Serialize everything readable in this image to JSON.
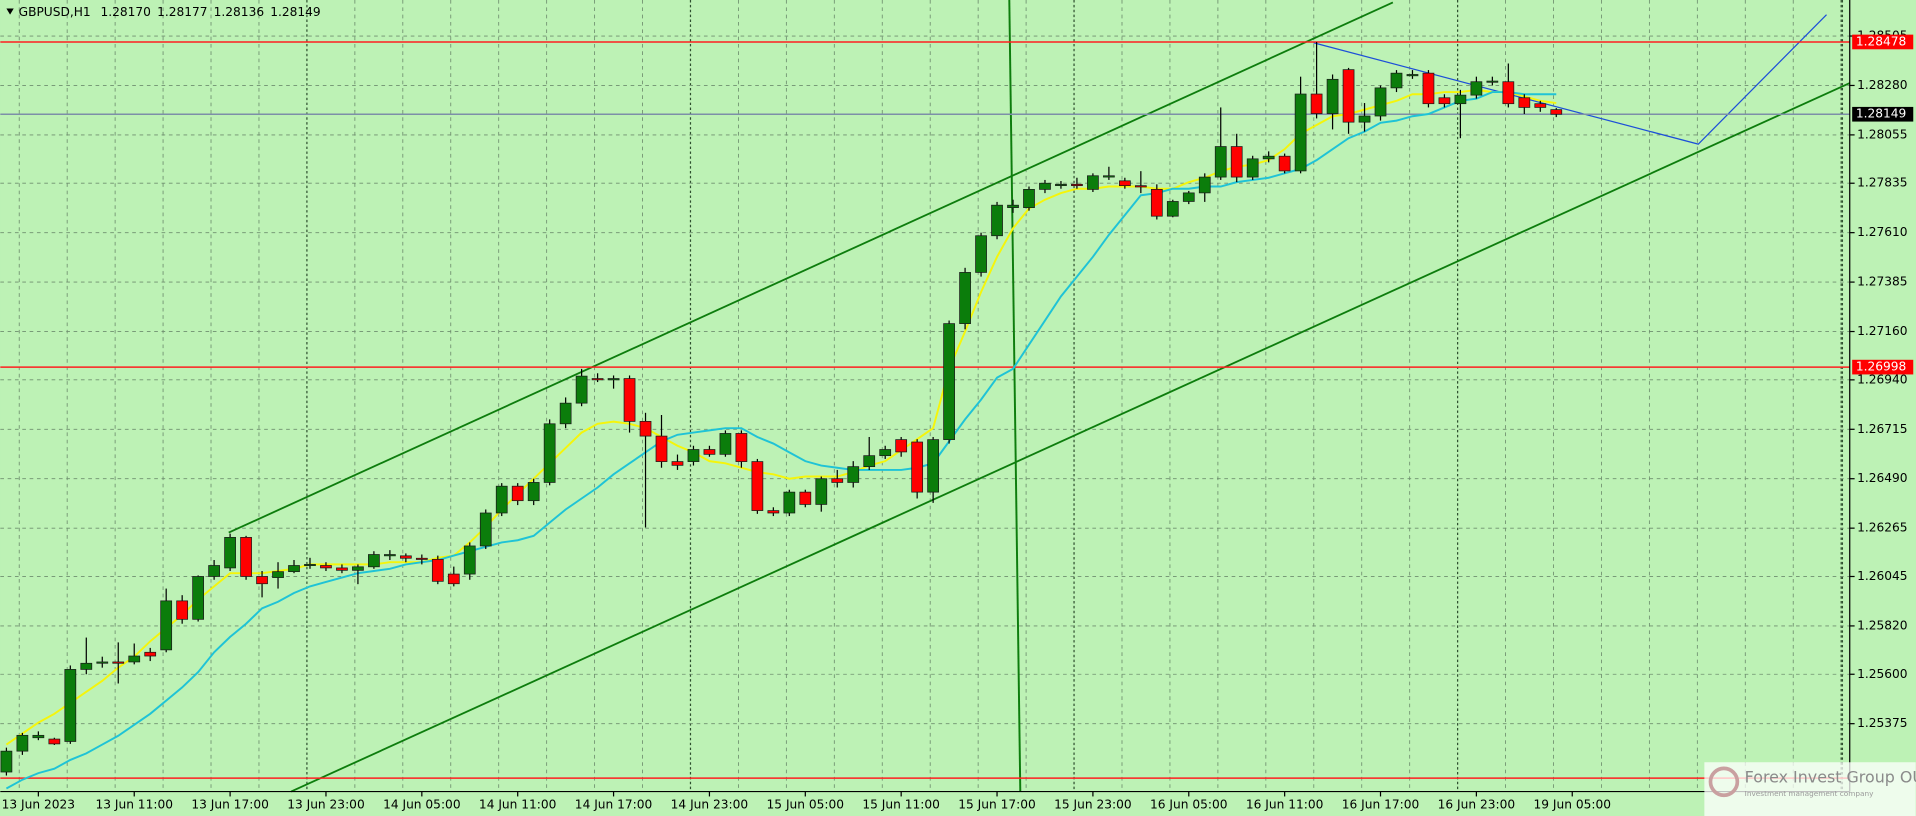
{
  "chart_data": {
    "type": "candlestick",
    "title": "GBPUSD,H1",
    "header_values": [
      "1.28170",
      "1.28177",
      "1.28136",
      "1.28149"
    ],
    "categories": [
      null,
      null,
      "13 Jun 2023",
      null,
      null,
      null,
      null,
      null,
      "13 Jun 11:00",
      null,
      null,
      null,
      null,
      null,
      "13 Jun 17:00",
      null,
      null,
      null,
      null,
      null,
      "13 Jun 23:00",
      null,
      null,
      null,
      null,
      null,
      "14 Jun 05:00",
      null,
      null,
      null,
      null,
      null,
      "14 Jun 11:00",
      null,
      null,
      null,
      null,
      null,
      "14 Jun 17:00",
      null,
      null,
      null,
      null,
      null,
      "14 Jun 23:00",
      null,
      null,
      null,
      null,
      null,
      "15 Jun 05:00",
      null,
      null,
      null,
      null,
      null,
      "15 Jun 11:00",
      null,
      null,
      null,
      null,
      null,
      "15 Jun 17:00",
      null,
      null,
      null,
      null,
      null,
      "15 Jun 23:00",
      null,
      null,
      null,
      null,
      null,
      "16 Jun 05:00",
      null,
      null,
      null,
      null,
      null,
      "16 Jun 11:00",
      null,
      null,
      null,
      null,
      null,
      "16 Jun 17:00",
      null,
      null,
      null,
      null,
      null,
      "16 Jun 23:00",
      null,
      null,
      null,
      null,
      null,
      "19 Jun 05:00"
    ],
    "open": [
      1.25155,
      1.2525,
      1.25311,
      1.25305,
      1.25294,
      1.25622,
      1.2565,
      1.25656,
      1.25656,
      1.257,
      1.25711,
      1.25934,
      1.2585,
      1.26045,
      1.26084,
      1.26223,
      1.26045,
      1.2604,
      1.26067,
      1.26095,
      1.26095,
      1.26084,
      1.26073,
      1.26089,
      1.26139,
      1.26139,
      1.26128,
      1.26123,
      1.26056,
      1.26056,
      1.26184,
      1.26334,
      1.26456,
      1.2639,
      1.26473,
      1.2674,
      1.26834,
      1.26946,
      1.2694,
      1.26946,
      1.26751,
      1.26684,
      1.26568,
      1.26568,
      1.26623,
      1.26601,
      1.26696,
      1.26568,
      1.26345,
      1.26334,
      1.26429,
      1.26373,
      1.2649,
      1.26473,
      1.26545,
      1.26595,
      1.26668,
      1.26657,
      1.26429,
      1.26668,
      1.27196,
      1.27429,
      1.27596,
      1.27724,
      1.27724,
      1.27807,
      1.27824,
      1.2783,
      1.27807,
      1.27863,
      1.27846,
      1.27824,
      1.27807,
      1.27685,
      1.27752,
      1.27791,
      1.27863,
      1.28002,
      1.27863,
      1.27946,
      1.27958,
      1.27891,
      1.28241,
      1.28152,
      1.28352,
      1.28113,
      1.28141,
      1.28269,
      1.28324,
      1.28336,
      1.28224,
      1.28197,
      1.28236,
      1.28297,
      1.28297,
      1.28224,
      1.28197,
      1.2817,
      null
    ],
    "high": [
      1.25266,
      1.25333,
      1.2534,
      1.25311,
      1.2564,
      1.25767,
      1.2568,
      1.25745,
      1.2574,
      1.2572,
      1.2599,
      1.2596,
      1.2605,
      1.2612,
      1.2624,
      1.2623,
      1.2607,
      1.2611,
      1.2612,
      1.2613,
      1.2611,
      1.261,
      1.261,
      1.2616,
      1.26165,
      1.2615,
      1.26145,
      1.2614,
      1.2609,
      1.262,
      1.2635,
      1.2647,
      1.2647,
      1.2649,
      1.2676,
      1.2686,
      1.2699,
      1.2697,
      1.2696,
      1.2696,
      1.2679,
      1.2678,
      1.266,
      1.2664,
      1.2664,
      1.2671,
      1.2671,
      1.2658,
      1.2636,
      1.2644,
      1.2644,
      1.265,
      1.2653,
      1.2657,
      1.2668,
      1.2664,
      1.2668,
      1.2667,
      1.2668,
      1.2721,
      1.2745,
      1.2761,
      1.2775,
      1.2776,
      1.2782,
      1.2785,
      1.27845,
      1.2786,
      1.2788,
      1.2791,
      1.2786,
      1.2789,
      1.2783,
      1.2776,
      1.278,
      1.2788,
      1.2818,
      1.2806,
      1.2796,
      1.2798,
      1.2797,
      1.2832,
      1.28478,
      1.2833,
      1.2836,
      1.282,
      1.2828,
      1.2835,
      1.2835,
      1.2835,
      1.2824,
      1.2826,
      1.2832,
      1.2832,
      1.2838,
      1.2824,
      1.2821,
      1.28177,
      null
    ],
    "low": [
      1.25139,
      1.25233,
      1.253,
      1.25278,
      1.25283,
      1.256,
      1.2563,
      1.25558,
      1.25645,
      1.2566,
      1.257,
      1.2583,
      1.2584,
      1.2603,
      1.2607,
      1.2603,
      1.2595,
      1.2599,
      1.2606,
      1.2608,
      1.2607,
      1.2606,
      1.2601,
      1.2608,
      1.2612,
      1.2611,
      1.261,
      1.2601,
      1.26,
      1.2603,
      1.2617,
      1.2632,
      1.2637,
      1.2637,
      1.2646,
      1.2672,
      1.2682,
      1.2693,
      1.269,
      1.267,
      1.26268,
      1.2654,
      1.2653,
      1.2655,
      1.2659,
      1.2659,
      1.2654,
      1.2633,
      1.2632,
      1.2632,
      1.2636,
      1.2634,
      1.2645,
      1.2645,
      1.2653,
      1.2658,
      1.2659,
      1.264,
      1.2638,
      1.2665,
      1.2717,
      1.2741,
      1.2758,
      1.277,
      1.2771,
      1.2779,
      1.2781,
      1.2781,
      1.27795,
      1.2785,
      1.2781,
      1.2779,
      1.2767,
      1.2768,
      1.2774,
      1.2775,
      1.2785,
      1.2784,
      1.2785,
      1.2793,
      1.2788,
      1.2788,
      1.2813,
      1.2808,
      1.2806,
      1.2807,
      1.2812,
      1.2825,
      1.2831,
      1.2818,
      1.2818,
      1.2804,
      1.2822,
      1.2828,
      1.2818,
      1.2815,
      1.2816,
      1.28136,
      null
    ],
    "close": [
      1.2525,
      1.25322,
      1.25322,
      1.25283,
      1.25622,
      1.2565,
      1.25656,
      1.2565,
      1.25683,
      1.25683,
      1.25934,
      1.2585,
      1.26045,
      1.26095,
      1.26223,
      1.26045,
      1.26012,
      1.26067,
      1.26095,
      1.261,
      1.26084,
      1.26073,
      1.26089,
      1.26145,
      1.26145,
      1.26128,
      1.26123,
      1.26023,
      1.26012,
      1.26184,
      1.26334,
      1.26456,
      1.2639,
      1.26473,
      1.2674,
      1.26834,
      1.26957,
      1.2694,
      1.26946,
      1.26751,
      1.26684,
      1.26568,
      1.26551,
      1.26623,
      1.26601,
      1.26696,
      1.26568,
      1.26345,
      1.26334,
      1.26429,
      1.26373,
      1.2649,
      1.26473,
      1.26545,
      1.26595,
      1.26623,
      1.26612,
      1.26429,
      1.26668,
      1.27196,
      1.27429,
      1.27596,
      1.27735,
      1.27735,
      1.27807,
      1.27835,
      1.2783,
      1.27824,
      1.27869,
      1.27869,
      1.27824,
      1.27818,
      1.27685,
      1.27752,
      1.27791,
      1.27863,
      1.28002,
      1.27863,
      1.27946,
      1.27958,
      1.27891,
      1.28241,
      1.28152,
      1.28308,
      1.28113,
      1.28141,
      1.28269,
      1.28336,
      1.2833,
      1.28197,
      1.28197,
      1.28236,
      1.28297,
      1.283,
      1.28197,
      1.2818,
      1.2818,
      1.28149,
      null
    ],
    "up_color": "#0b7d0b",
    "down_color": "#ff0000",
    "series": [
      {
        "color": "#f5f50a",
        "values": [
          1.2528,
          1.2533,
          1.2538,
          1.2542,
          1.2547,
          1.2552,
          1.2557,
          1.2563,
          1.2568,
          1.2575,
          1.2581,
          1.2587,
          1.2594,
          1.26,
          1.2606,
          1.2606,
          1.2606,
          1.2607,
          1.2608,
          1.261,
          1.261,
          1.261,
          1.261,
          1.261,
          1.2611,
          1.2611,
          1.2611,
          1.2613,
          1.2614,
          1.262,
          1.2627,
          1.2635,
          1.2642,
          1.2649,
          1.2656,
          1.2663,
          1.267,
          1.2674,
          1.2675,
          1.2674,
          1.2672,
          1.2668,
          1.2664,
          1.2661,
          1.2657,
          1.2656,
          1.2654,
          1.2652,
          1.2651,
          1.2649,
          1.265,
          1.265,
          1.265,
          1.2652,
          1.2655,
          1.2657,
          1.2662,
          1.2667,
          1.2672,
          1.2699,
          1.2716,
          1.2734,
          1.275,
          1.2763,
          1.2772,
          1.2776,
          1.2779,
          1.2781,
          1.2781,
          1.2782,
          1.2782,
          1.2782,
          1.2781,
          1.2781,
          1.2784,
          1.2786,
          1.2789,
          1.2791,
          1.2792,
          1.2794,
          1.2799,
          1.2806,
          1.281,
          1.2814,
          1.2815,
          1.2817,
          1.2819,
          1.2821,
          1.2824,
          1.2824,
          1.2825,
          1.2825,
          1.2826,
          1.2825,
          1.2825,
          1.2823,
          1.2821,
          1.282,
          null
        ]
      },
      {
        "color": "#1fc3d6",
        "values": [
          1.2508,
          1.2512,
          1.2515,
          1.2517,
          1.2521,
          1.2524,
          1.2528,
          1.2532,
          1.2537,
          1.2542,
          1.2548,
          1.2554,
          1.2561,
          1.257,
          1.2577,
          1.2583,
          1.259,
          1.2593,
          1.2597,
          1.26,
          1.2602,
          1.2604,
          1.2606,
          1.2607,
          1.2608,
          1.261,
          1.2611,
          1.2612,
          1.2614,
          1.2616,
          1.2618,
          1.262,
          1.2621,
          1.2623,
          1.2629,
          1.2635,
          1.264,
          1.2645,
          1.2651,
          1.2656,
          1.2661,
          1.2666,
          1.2669,
          1.267,
          1.2671,
          1.2672,
          1.2672,
          1.2668,
          1.2665,
          1.2661,
          1.2657,
          1.2655,
          1.2654,
          1.2653,
          1.2653,
          1.2653,
          1.2653,
          1.2654,
          1.2656,
          1.2666,
          1.2676,
          1.2685,
          1.2695,
          1.2699,
          1.271,
          1.2721,
          1.2732,
          1.2741,
          1.275,
          1.276,
          1.2769,
          1.2778,
          1.2779,
          1.2781,
          1.2781,
          1.2782,
          1.2782,
          1.2784,
          1.2785,
          1.2786,
          1.2788,
          1.279,
          1.2794,
          1.2799,
          1.2804,
          1.2807,
          1.2811,
          1.2812,
          1.2814,
          1.2815,
          1.2818,
          1.2821,
          1.2822,
          1.2825,
          1.2825,
          1.2824,
          1.2824,
          1.2824,
          null
        ]
      }
    ],
    "ylim": [
      1.25066,
      1.28669
    ],
    "yticks": [
      1.28505,
      {
        "value": 1.2828,
        "label": "1.28280"
      },
      1.28055,
      1.27835,
      {
        "value": 1.2761,
        "label": "1.27610"
      },
      1.27385,
      {
        "value": 1.2716,
        "label": "1.27160"
      },
      {
        "value": 1.2694,
        "label": "1.26940"
      },
      1.26715,
      {
        "value": 1.2649,
        "label": "1.26490"
      },
      1.26265,
      1.26045,
      {
        "value": 1.2582,
        "label": "1.25820"
      },
      {
        "value": 1.256,
        "label": "1.25600"
      },
      1.25375
    ],
    "grid": true,
    "hlines": [
      {
        "value": 1.28478,
        "color": "#ff2020",
        "label_color": "#ff0000",
        "show_label": true
      },
      {
        "value": 1.26998,
        "color": "#ff2020",
        "label_color": "#ff0000",
        "show_label": true
      },
      {
        "value": 1.25127,
        "color": "#ff2020",
        "label_color": "#ff0000",
        "show_label": false
      },
      {
        "value": 1.28149,
        "color": "#7d8fa8",
        "label_color": "#000000",
        "show_label": true
      }
    ],
    "annotations": [
      "Forex Invest Group OU",
      "Investment management company"
    ]
  }
}
